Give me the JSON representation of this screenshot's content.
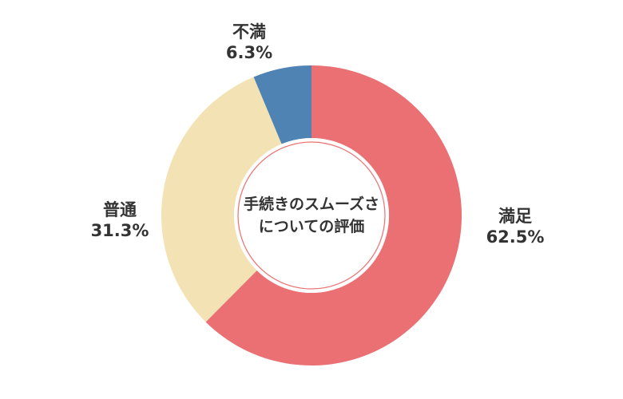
{
  "chart_data": {
    "type": "donut",
    "center_title": [
      "手続きのスムーズさ",
      "についての評価"
    ],
    "slices": [
      {
        "label": "満足",
        "value": 62.5,
        "display": "62.5%",
        "color": "#EB7073"
      },
      {
        "label": "普通",
        "value": 31.3,
        "display": "31.3%",
        "color": "#F3E2B4"
      },
      {
        "label": "不満",
        "value": 6.3,
        "display": "6.3%",
        "color": "#4F83B3"
      }
    ],
    "start": "12 o'clock",
    "direction": "clockwise",
    "legend": "none"
  }
}
